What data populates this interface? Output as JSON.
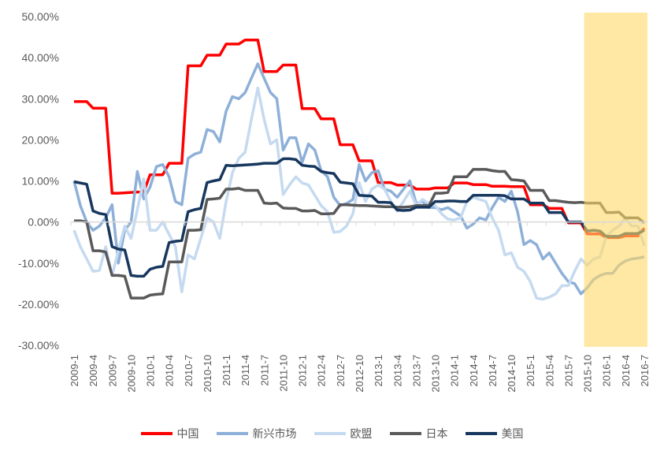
{
  "chart_data": {
    "type": "line",
    "title": "",
    "xlabel": "",
    "ylabel": "",
    "ylim": [
      -30,
      50
    ],
    "y_ticks": [
      50,
      40,
      30,
      20,
      10,
      0,
      -10,
      -20,
      -30
    ],
    "y_tick_labels": [
      "50.00%",
      "40.00%",
      "30.00%",
      "20.00%",
      "10.00%",
      "0.00%",
      "-10.00%",
      "-20.00%",
      "-30.00%"
    ],
    "x_start": "2009-1",
    "x_end": "2016-7",
    "x_tick_labels": [
      "2009-1",
      "2009-4",
      "2009-7",
      "2009-10",
      "2010-1",
      "2010-4",
      "2010-7",
      "2010-10",
      "2011-1",
      "2011-4",
      "2011-7",
      "2011-10",
      "2012-1",
      "2012-4",
      "2012-7",
      "2012-10",
      "2013-1",
      "2013-4",
      "2013-7",
      "2013-10",
      "2014-1",
      "2014-4",
      "2014-7",
      "2014-10",
      "2015-1",
      "2015-4",
      "2015-7",
      "2015-10",
      "2016-1",
      "2016-4",
      "2016-7"
    ],
    "highlight": {
      "from": "2015-10",
      "to": "2016-7",
      "color": "#FFD966"
    },
    "legend_position": "bottom",
    "grid": false,
    "series": [
      {
        "name": "中国",
        "color": "#FF0000",
        "values": [
          29.3,
          29.3,
          29.3,
          27.7,
          27.7,
          27.7,
          7,
          7,
          7.1,
          7.2,
          7.3,
          7.3,
          11.5,
          11.5,
          11.5,
          14.3,
          14.3,
          14.3,
          38,
          38,
          38,
          40.6,
          40.6,
          40.6,
          43.3,
          43.3,
          43.3,
          44.3,
          44.3,
          44.3,
          36.6,
          36.6,
          36.6,
          38.2,
          38.2,
          38.2,
          27.6,
          27.6,
          27.6,
          25.1,
          25.1,
          25.1,
          18.8,
          18.8,
          18.8,
          14.9,
          14.9,
          14.9,
          9.6,
          9.6,
          9.6,
          9,
          9,
          9,
          8,
          8,
          8,
          8.3,
          8.3,
          8.3,
          9.5,
          9.5,
          9.5,
          9.1,
          9.1,
          9.1,
          8.7,
          8.7,
          8.7,
          8.6,
          8.6,
          8.6,
          4.2,
          4.2,
          4.2,
          3.3,
          3.3,
          3.3,
          -0.2,
          -0.2,
          -0.2,
          -2.9,
          -2.9,
          -2.9,
          -3.8,
          -3.8,
          -3.8,
          -3.4,
          -3.4,
          -3.4,
          -1.5
        ]
      },
      {
        "name": "新兴市场",
        "color": "#8EB0D8",
        "values": [
          10,
          4,
          0,
          -2,
          -1,
          1,
          4.2,
          -10,
          -2,
          0,
          12.3,
          5.6,
          8.5,
          13.5,
          14,
          11,
          5,
          4.2,
          15.5,
          16.5,
          17,
          22.5,
          22,
          19.5,
          27,
          30.5,
          30,
          31.5,
          35,
          38.5,
          35,
          31.5,
          30,
          17.5,
          20.5,
          20.5,
          14.5,
          19,
          17.5,
          12.5,
          11,
          6,
          4,
          4.5,
          5.5,
          14,
          10,
          12,
          12.5,
          8,
          7.5,
          6,
          8,
          10,
          4.5,
          5,
          3.5,
          3.5,
          3,
          3.5,
          2.5,
          1.5,
          -1.5,
          -0.5,
          1,
          0.5,
          3.5,
          6,
          5,
          7.5,
          2.5,
          -5.5,
          -4.5,
          -5.5,
          -9,
          -7.5,
          -10,
          -12.5,
          -14.5,
          -15,
          -17.5,
          -16,
          -14,
          -13,
          -12.5,
          -12.5,
          -10.5,
          -9.5,
          -9,
          -8.8,
          -8.5
        ]
      },
      {
        "name": "欧盟",
        "color": "#C5DAF0",
        "values": [
          -2,
          -6,
          -9,
          -12,
          -11.8,
          -6,
          -13,
          -7,
          -1,
          -4,
          3,
          10.5,
          -2,
          -2,
          0,
          -3,
          -6,
          -17,
          -8,
          -9,
          -4,
          1,
          0,
          -4,
          5,
          12,
          15.5,
          17,
          25,
          32.6,
          25,
          19,
          20,
          6.7,
          9,
          11,
          9.5,
          9,
          6.5,
          4,
          2.5,
          -2.5,
          -2.3,
          -1,
          2,
          9.6,
          5,
          8,
          9,
          8,
          5,
          2.7,
          5,
          7.5,
          4,
          5.5,
          4.5,
          4,
          2,
          0.7,
          0.5,
          1,
          5,
          6,
          5.5,
          5,
          1,
          -2,
          -8,
          -7.5,
          -11,
          -12,
          -14.5,
          -18.5,
          -18.8,
          -18.3,
          -17.5,
          -15.5,
          -15.5,
          -12,
          -9,
          -10.5,
          -9,
          -8.5,
          -3.5,
          -2,
          -1,
          1,
          -1,
          -1,
          -5.8
        ]
      },
      {
        "name": "日本",
        "color": "#595959",
        "values": [
          0.3,
          0.3,
          0,
          -7,
          -7,
          -7.3,
          -13,
          -13,
          -13.2,
          -18.5,
          -18.5,
          -18.5,
          -17.8,
          -17.6,
          -17.5,
          -9.7,
          -9.7,
          -9.7,
          -2,
          -2,
          -1.9,
          5.5,
          5.6,
          5.8,
          8,
          8,
          8.2,
          7.7,
          7.7,
          7.7,
          4.6,
          4.5,
          4.6,
          3.4,
          3.3,
          3.3,
          2.7,
          2.7,
          2.8,
          2,
          2,
          2.1,
          4.2,
          4.2,
          4.1,
          4,
          4,
          3.9,
          3.8,
          3.7,
          3.7,
          3.6,
          3.6,
          3.7,
          4,
          4,
          4,
          7,
          7,
          7.2,
          11,
          11,
          11,
          12.8,
          12.8,
          12.8,
          12.5,
          12.3,
          12.3,
          10.3,
          10.2,
          10,
          7.7,
          7.7,
          7.7,
          5.2,
          5.2,
          5,
          4.8,
          4.7,
          4.8,
          4.6,
          4.6,
          4.6,
          2.3,
          2.3,
          2.4,
          1,
          1,
          1,
          -0.2
        ]
      },
      {
        "name": "美国",
        "color": "#17375E",
        "values": [
          9.8,
          9.5,
          9.2,
          2.7,
          2.1,
          1.8,
          -6,
          -6.6,
          -6.8,
          -13,
          -13.2,
          -13.2,
          -11.5,
          -11,
          -10.8,
          -5,
          -4.7,
          -4.5,
          2.5,
          3,
          3.3,
          9.6,
          10,
          10.3,
          13.8,
          13.7,
          13.8,
          13.9,
          14,
          14.1,
          14.3,
          14.3,
          14.3,
          15.4,
          15.4,
          15.2,
          13.8,
          13.6,
          13.5,
          12.3,
          12,
          11.8,
          9.7,
          9.5,
          9.3,
          6.5,
          6.4,
          6.3,
          4.8,
          4.8,
          4.7,
          2.9,
          2.8,
          2.9,
          3.6,
          3.6,
          3.6,
          5,
          5,
          5.1,
          5.1,
          5,
          5,
          6.5,
          6.5,
          6.5,
          6.5,
          6.5,
          6.4,
          5.6,
          5.6,
          5.6,
          4.6,
          4.6,
          4.6,
          2.3,
          2.3,
          2.3,
          0,
          0,
          0,
          -2.2,
          -2,
          -2.2,
          -3.5,
          -3.5,
          -3.5,
          -2.8,
          -2.8,
          -2.8,
          -2
        ]
      }
    ]
  }
}
